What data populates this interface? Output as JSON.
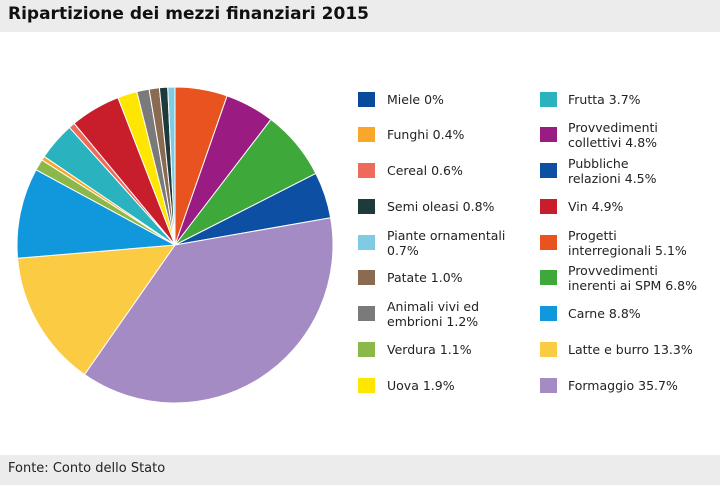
{
  "title": "Ripartizione dei mezzi finanziari 2015",
  "source": "Fonte: Conto dello Stato",
  "chart_data": {
    "type": "pie",
    "title": "Ripartizione dei mezzi finanziari 2015",
    "start_angle_deg": 0,
    "direction": "clockwise",
    "slices": [
      {
        "label": "Miele 0%",
        "value": 0.0,
        "color": "#0a4a9c"
      },
      {
        "label": "Progetti interregionali 5.1%",
        "value": 5.1,
        "color": "#e8531f"
      },
      {
        "label": "Provvedimenti collettivi 4.8%",
        "value": 4.8,
        "color": "#9a1b82"
      },
      {
        "label": "Provvedimenti inerenti ai SPM 6.8%",
        "value": 6.8,
        "color": "#3ea83a"
      },
      {
        "label": "Pubbliche relazioni 4.5%",
        "value": 4.5,
        "color": "#0d4fa3"
      },
      {
        "label": "Formaggio 35.7%",
        "value": 35.7,
        "color": "#a58bc4"
      },
      {
        "label": "Latte e burro 13.3%",
        "value": 13.3,
        "color": "#fccb44"
      },
      {
        "label": "Carne 8.8%",
        "value": 8.8,
        "color": "#1197dc"
      },
      {
        "label": "Verdura 1.1%",
        "value": 1.1,
        "color": "#8cb84a"
      },
      {
        "label": "Funghi 0.4%",
        "value": 0.4,
        "color": "#f9a72b"
      },
      {
        "label": "Frutta 3.7%",
        "value": 3.7,
        "color": "#2ab2be"
      },
      {
        "label": "Cereal 0.6%",
        "value": 0.6,
        "color": "#ee6b5c"
      },
      {
        "label": "Vin 4.9%",
        "value": 4.9,
        "color": "#c81e2b"
      },
      {
        "label": "Uova 1.9%",
        "value": 1.9,
        "color": "#ffe600"
      },
      {
        "label": "Animali vivi ed embrioni 1.2%",
        "value": 1.2,
        "color": "#7a7a7a"
      },
      {
        "label": "Patate 1.0%",
        "value": 1.0,
        "color": "#8b6a52"
      },
      {
        "label": "Semi oleasi 0.8%",
        "value": 0.8,
        "color": "#1f3a3a"
      },
      {
        "label": "Piante ornamentali 0.7%",
        "value": 0.7,
        "color": "#7fcbe3"
      }
    ],
    "legend": [
      {
        "lines": [
          "Miele 0%"
        ],
        "color": "#0a4a9c"
      },
      {
        "lines": [
          "Funghi 0.4%"
        ],
        "color": "#f9a72b"
      },
      {
        "lines": [
          "Cereal 0.6%"
        ],
        "color": "#ee6b5c"
      },
      {
        "lines": [
          "Semi oleasi 0.8%"
        ],
        "color": "#1f3a3a"
      },
      {
        "lines": [
          "Piante ornamentali",
          "0.7%"
        ],
        "color": "#7fcbe3"
      },
      {
        "lines": [
          "Patate 1.0%"
        ],
        "color": "#8b6a52"
      },
      {
        "lines": [
          "Animali vivi ed",
          "embrioni 1.2%"
        ],
        "color": "#7a7a7a"
      },
      {
        "lines": [
          "Verdura 1.1%"
        ],
        "color": "#8cb84a"
      },
      {
        "lines": [
          "Uova 1.9%"
        ],
        "color": "#ffe600"
      },
      {
        "lines": [
          "Frutta 3.7%"
        ],
        "color": "#2ab2be"
      },
      {
        "lines": [
          "Provvedimenti",
          "collettivi 4.8%"
        ],
        "color": "#9a1b82"
      },
      {
        "lines": [
          "Pubbliche",
          "relazioni 4.5%"
        ],
        "color": "#0d4fa3"
      },
      {
        "lines": [
          "Vin 4.9%"
        ],
        "color": "#c81e2b"
      },
      {
        "lines": [
          "Progetti",
          "interregionali 5.1%"
        ],
        "color": "#e8531f"
      },
      {
        "lines": [
          "Provvedimenti",
          "inerenti ai SPM 6.8%"
        ],
        "color": "#3ea83a"
      },
      {
        "lines": [
          "Carne 8.8%"
        ],
        "color": "#1197dc"
      },
      {
        "lines": [
          "Latte e burro 13.3%"
        ],
        "color": "#fccb44"
      },
      {
        "lines": [
          "Formaggio 35.7%"
        ],
        "color": "#a58bc4"
      }
    ]
  }
}
